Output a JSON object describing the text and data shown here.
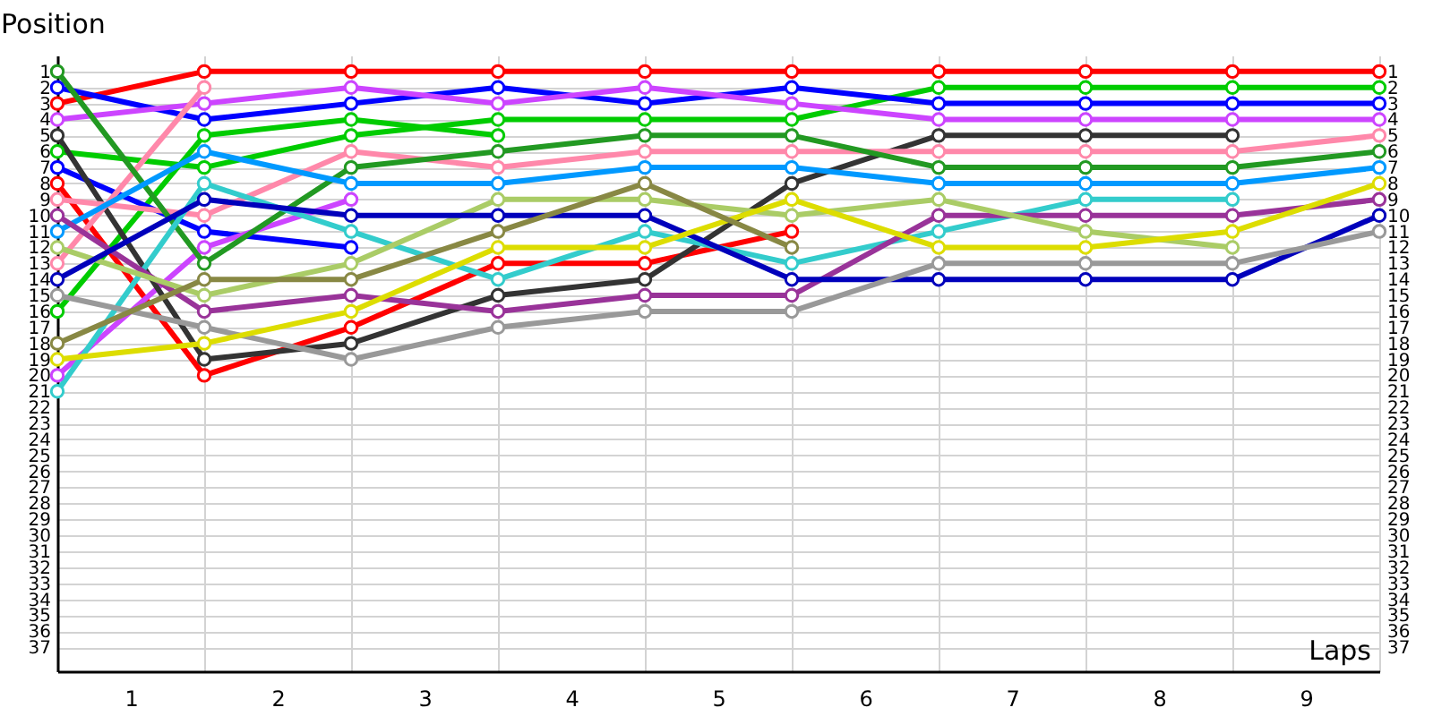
{
  "chart_data": {
    "type": "line",
    "xlabel": "Laps",
    "ylabel": "Position",
    "x": [
      0,
      1,
      2,
      3,
      4,
      5,
      6,
      7,
      8,
      9
    ],
    "xlim": [
      0,
      9
    ],
    "xticks": [
      {
        "value": 0,
        "label": null
      },
      {
        "value": 0.5,
        "label": "1"
      },
      {
        "value": 1,
        "label": null
      },
      {
        "value": 1.5,
        "label": "2"
      },
      {
        "value": 2,
        "label": null
      },
      {
        "value": 2.5,
        "label": "3"
      },
      {
        "value": 3,
        "label": null
      },
      {
        "value": 3.5,
        "label": "4"
      },
      {
        "value": 4,
        "label": null
      },
      {
        "value": 4.5,
        "label": "5"
      },
      {
        "value": 5,
        "label": null
      },
      {
        "value": 5.5,
        "label": "6"
      },
      {
        "value": 6,
        "label": null
      },
      {
        "value": 6.5,
        "label": "7"
      },
      {
        "value": 7,
        "label": null
      },
      {
        "value": 7.5,
        "label": "8"
      },
      {
        "value": 8,
        "label": null
      },
      {
        "value": 8.5,
        "label": "9"
      },
      {
        "value": 9,
        "label": null
      }
    ],
    "ylim": [
      38.5,
      0
    ],
    "yticks": [
      1,
      2,
      3,
      4,
      5,
      6,
      7,
      8,
      9,
      10,
      11,
      12,
      13,
      14,
      15,
      16,
      17,
      18,
      19,
      20,
      21,
      22,
      23,
      24,
      25,
      26,
      27,
      28,
      29,
      30,
      31,
      32,
      33,
      34,
      35,
      36,
      37
    ],
    "y2lim": [
      38.5,
      0
    ],
    "y2ticks": [
      1,
      2,
      3,
      4,
      5,
      6,
      7,
      8,
      9,
      10,
      11,
      12,
      13,
      14,
      15,
      16,
      17,
      18,
      19,
      20,
      21,
      22,
      23,
      24,
      25,
      26,
      27,
      28,
      29,
      30,
      31,
      32,
      33,
      34,
      35,
      36,
      37
    ],
    "grid": true,
    "legend": false,
    "marker": "circle",
    "line_style": "solid",
    "series": [
      {
        "color": "#ff0000",
        "values": [
          3,
          1,
          1,
          1,
          1,
          1,
          1,
          1,
          1,
          1
        ]
      },
      {
        "color": "#ff0000",
        "values": [
          8,
          20,
          17,
          13,
          13,
          11,
          null,
          null,
          null,
          null
        ]
      },
      {
        "color": "#00cc00",
        "values": [
          6,
          7,
          5,
          4,
          4,
          4,
          2,
          2,
          2,
          2
        ]
      },
      {
        "color": "#00cc00",
        "values": [
          16,
          5,
          4,
          5,
          null,
          null,
          null,
          null,
          null,
          null
        ]
      },
      {
        "color": "#0000ff",
        "values": [
          2,
          4,
          3,
          2,
          3,
          2,
          3,
          3,
          3,
          3
        ]
      },
      {
        "color": "#0000ff",
        "values": [
          7,
          11,
          12,
          null,
          null,
          null,
          null,
          null,
          null,
          null
        ]
      },
      {
        "color": "#cc44ff",
        "values": [
          4,
          3,
          2,
          3,
          2,
          3,
          4,
          4,
          4,
          4
        ]
      },
      {
        "color": "#cc44ff",
        "values": [
          20,
          12,
          9,
          null,
          null,
          null,
          null,
          null,
          null,
          null
        ]
      },
      {
        "color": "#333333",
        "values": [
          5,
          19,
          18,
          15,
          14,
          8,
          5,
          5,
          5,
          null
        ]
      },
      {
        "color": "#ff88aa",
        "values": [
          9,
          10,
          6,
          7,
          6,
          6,
          6,
          6,
          6,
          5
        ]
      },
      {
        "color": "#ff88aa",
        "values": [
          13,
          2,
          null,
          null,
          null,
          null,
          null,
          null,
          null,
          null
        ]
      },
      {
        "color": "#229922",
        "values": [
          1,
          13,
          7,
          6,
          5,
          5,
          7,
          7,
          7,
          6
        ]
      },
      {
        "color": "#0099ff",
        "values": [
          11,
          6,
          8,
          8,
          7,
          7,
          8,
          8,
          8,
          7
        ]
      },
      {
        "color": "#33cccc",
        "values": [
          21,
          8,
          11,
          14,
          11,
          13,
          11,
          9,
          9,
          null
        ]
      },
      {
        "color": "#993399",
        "values": [
          10,
          16,
          15,
          16,
          15,
          15,
          10,
          10,
          10,
          9
        ]
      },
      {
        "color": "#aacc66",
        "values": [
          12,
          15,
          13,
          9,
          9,
          10,
          9,
          11,
          12,
          null
        ]
      },
      {
        "color": "#0000bb",
        "values": [
          14,
          9,
          10,
          10,
          10,
          14,
          14,
          14,
          14,
          10
        ]
      },
      {
        "color": "#999999",
        "values": [
          15,
          17,
          19,
          17,
          16,
          16,
          13,
          13,
          13,
          11
        ]
      },
      {
        "color": "#dddd00",
        "values": [
          19,
          18,
          16,
          12,
          12,
          9,
          12,
          12,
          11,
          8
        ]
      },
      {
        "color": "#888844",
        "values": [
          18,
          14,
          14,
          11,
          8,
          12,
          null,
          null,
          null,
          null
        ]
      }
    ]
  }
}
